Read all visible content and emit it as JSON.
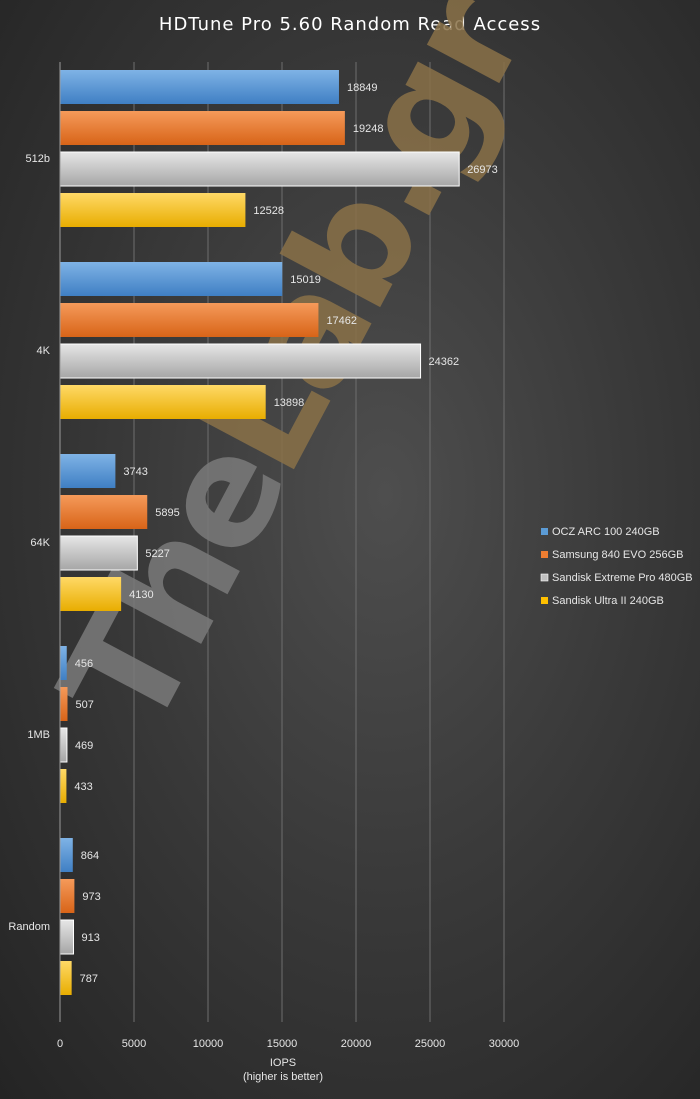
{
  "chart_data": {
    "type": "bar",
    "orientation": "horizontal",
    "title": "HDTune Pro 5.60 Random Read Access",
    "xlabel": "IOPS",
    "xlabel_sub": "(higher is better)",
    "xlim": [
      0,
      30000
    ],
    "xticks": [
      0,
      5000,
      10000,
      15000,
      20000,
      25000,
      30000
    ],
    "grid": "vertical",
    "legend_position": "right",
    "categories": [
      "512b",
      "4K",
      "64K",
      "1MB",
      "Random"
    ],
    "series": [
      {
        "name": "OCZ ARC 100 240GB",
        "color": "#5b9bd5",
        "values": [
          18849,
          15019,
          3743,
          456,
          864
        ]
      },
      {
        "name": "Samsung 840 EVO 256GB",
        "color": "#ed7d31",
        "values": [
          19248,
          17462,
          5895,
          507,
          973
        ]
      },
      {
        "name": "Sandisk Extreme Pro 480GB",
        "color": "#bfbfbf",
        "values": [
          26973,
          24362,
          5227,
          469,
          913
        ]
      },
      {
        "name": "Sandisk Ultra II 240GB",
        "color": "#ffc000",
        "values": [
          12528,
          13898,
          4130,
          433,
          787
        ]
      }
    ]
  },
  "watermark": {
    "text_the": "The",
    "text_lab": "Lab.gr",
    "color_the": "#7a7a7a",
    "color_lab": "#8a7148"
  }
}
